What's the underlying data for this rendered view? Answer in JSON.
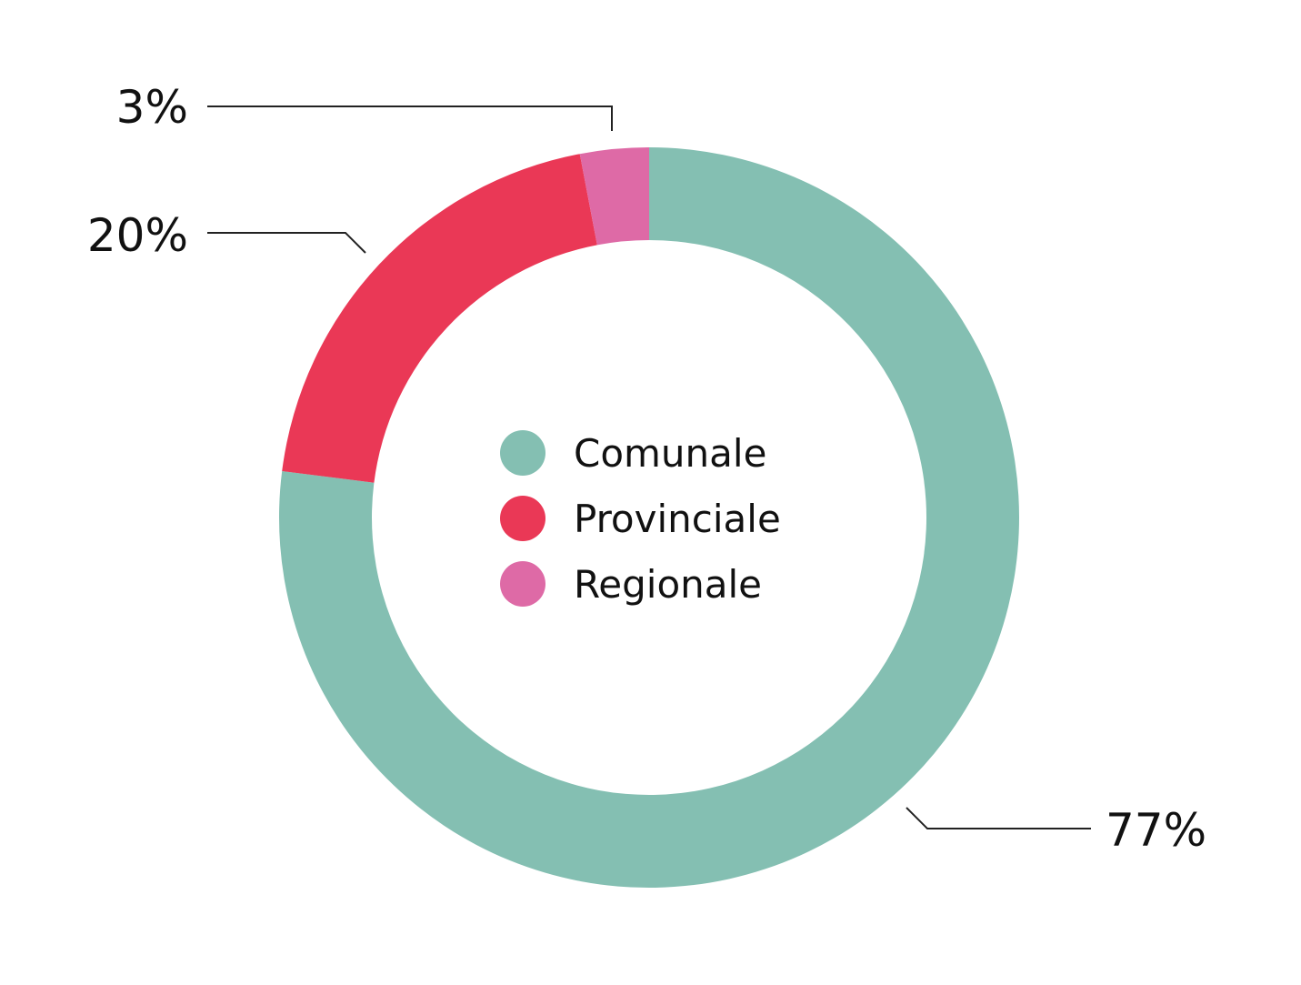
{
  "chart_data": {
    "type": "pie",
    "variant": "donut",
    "title": "",
    "unit": "%",
    "categories": [
      "Comunale",
      "Provinciale",
      "Regionale"
    ],
    "values": [
      77,
      20,
      3
    ],
    "value_labels": [
      "77%",
      "20%",
      "3%"
    ],
    "colors": [
      "#84BFB2",
      "#EA3856",
      "#DE6AA6"
    ],
    "legend_position": "center"
  }
}
